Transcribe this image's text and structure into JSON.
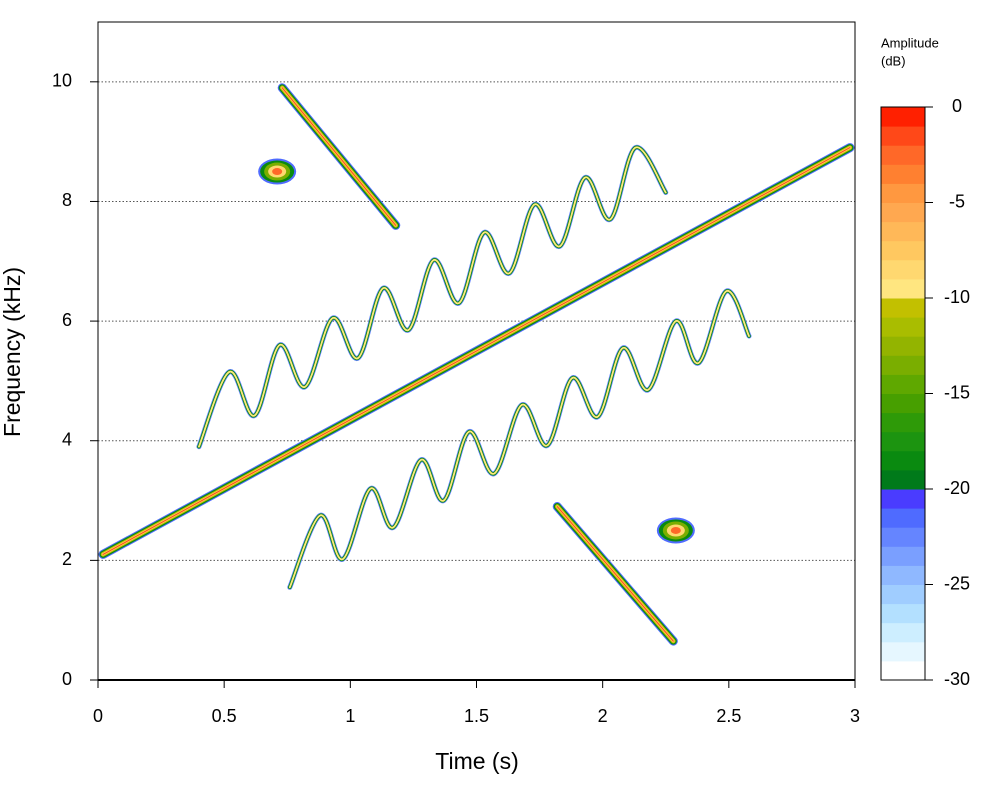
{
  "chart_data": {
    "type": "spectrogram",
    "x_label": "Time (s)",
    "y_label": "Frequency (kHz)",
    "colorbar_title": [
      "Amplitude",
      "(dB)"
    ],
    "xlim": [
      0,
      3
    ],
    "ylim": [
      0,
      11
    ],
    "xticks": [
      0,
      0.5,
      1,
      1.5,
      2,
      2.5,
      3
    ],
    "yticks": [
      0,
      2,
      4,
      6,
      8,
      10
    ],
    "grid": true,
    "zlim": [
      -30,
      0
    ],
    "zticks": [
      0,
      -5,
      -10,
      -15,
      -20,
      -25,
      -30
    ],
    "colors": [
      "#ffffff",
      "#e6f7ff",
      "#cdeeff",
      "#b3e0ff",
      "#a0cdff",
      "#8fb8ff",
      "#7a9fff",
      "#6585ff",
      "#4f6bff",
      "#4a3cff",
      "#007a1a",
      "#0a8a10",
      "#1c9410",
      "#2e9a08",
      "#479f00",
      "#5fa800",
      "#7aae00",
      "#93b400",
      "#a9bd00",
      "#c2c000",
      "#ffe680",
      "#ffd870",
      "#ffc860",
      "#ffb858",
      "#ffa850",
      "#ff9840",
      "#ff8030",
      "#ff6828",
      "#ff4818",
      "#ff2000"
    ],
    "series": [
      {
        "x": [
          0.02,
          2.98
        ],
        "values": [
          2.1,
          8.9
        ]
      },
      {
        "x": [
          0.73,
          1.18
        ],
        "values": [
          9.9,
          7.6
        ]
      },
      {
        "x": [
          1.82,
          2.28
        ],
        "values": [
          2.9,
          0.65
        ]
      },
      {
        "x": [
          0.4,
          0.52,
          0.62,
          0.72,
          0.82,
          0.93,
          1.03,
          1.13,
          1.23,
          1.33,
          1.43,
          1.53,
          1.63,
          1.73,
          1.83,
          1.93,
          2.03,
          2.13,
          2.25
        ],
        "values": [
          3.9,
          5.15,
          4.42,
          5.6,
          4.9,
          6.05,
          5.38,
          6.55,
          5.85,
          7.02,
          6.3,
          7.48,
          6.8,
          7.95,
          7.25,
          8.4,
          7.7,
          8.9,
          8.15
        ]
      },
      {
        "x": [
          0.76,
          0.88,
          0.97,
          1.08,
          1.17,
          1.28,
          1.37,
          1.47,
          1.57,
          1.68,
          1.78,
          1.88,
          1.98,
          2.08,
          2.18,
          2.29,
          2.38,
          2.49,
          2.58
        ],
        "values": [
          1.55,
          2.75,
          2.02,
          3.2,
          2.55,
          3.68,
          3.0,
          4.15,
          3.45,
          4.6,
          3.92,
          5.05,
          4.4,
          5.55,
          4.85,
          6.0,
          5.3,
          6.5,
          5.75
        ]
      },
      {
        "x": [
          0.71
        ],
        "values": [
          8.5
        ]
      },
      {
        "x": [
          2.29
        ],
        "values": [
          2.5
        ]
      }
    ]
  }
}
